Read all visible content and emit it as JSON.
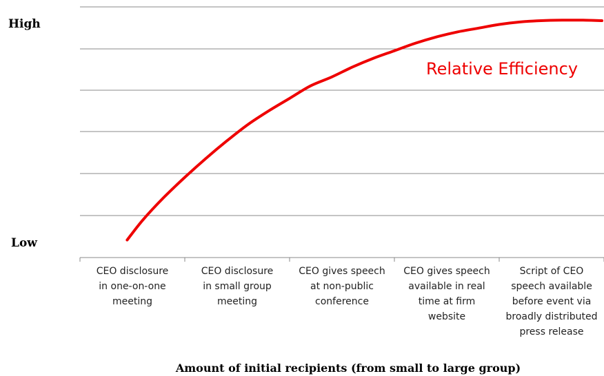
{
  "chart_data": {
    "type": "line",
    "y_axis_labels": {
      "high": "High",
      "low": "Low"
    },
    "categories": [
      [
        "CEO disclosure",
        "in one-on-one",
        "meeting"
      ],
      [
        "CEO disclosure",
        "in small group",
        "meeting"
      ],
      [
        "CEO gives speech",
        "at non-public",
        "conference"
      ],
      [
        "CEO gives speech",
        "available in real",
        "time at firm",
        "website"
      ],
      [
        "Script of CEO",
        "speech available",
        "before event via",
        "broadly distributed",
        "press release"
      ]
    ],
    "series": [
      {
        "name": "Relative Efficiency",
        "x": [
          0.45,
          0.6,
          0.8,
          1.0,
          1.2,
          1.4,
          1.6,
          1.8,
          2.0,
          2.2,
          2.4,
          2.6,
          2.8,
          3.0,
          3.2,
          3.4,
          3.6,
          3.8,
          4.0,
          4.2,
          4.4,
          4.6,
          4.8,
          4.98
        ],
        "values": [
          0.07,
          0.15,
          0.24,
          0.32,
          0.395,
          0.465,
          0.53,
          0.585,
          0.635,
          0.685,
          0.72,
          0.76,
          0.795,
          0.825,
          0.855,
          0.88,
          0.9,
          0.915,
          0.93,
          0.94,
          0.945,
          0.947,
          0.947,
          0.945
        ],
        "color": "#ee0000"
      }
    ],
    "xlabel": "Amount of initial recipients (from small  to large group)",
    "ylim": [
      0,
      1
    ],
    "grid": true
  }
}
